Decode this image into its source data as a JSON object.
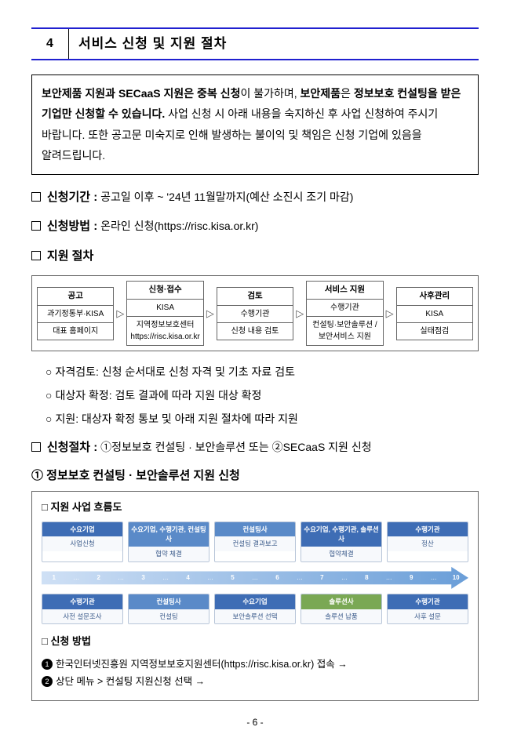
{
  "section": {
    "num": "4",
    "title": "서비스 신청 및 지원 절차"
  },
  "notice": {
    "parts": [
      {
        "t": "보안제품 지원과 SECaaS 지원은 중복 신청",
        "b": true
      },
      {
        "t": "이 불가하며, ",
        "b": false
      },
      {
        "t": "보안제품",
        "b": true
      },
      {
        "t": "은 ",
        "b": false
      },
      {
        "t": "정보보호 컨설팅을 받은 기업만 신청할 수 있습니다.",
        "b": true
      },
      {
        "t": " 사업 신청 시 아래 내용을 숙지하신 후 사업 신청하여 주시기 바랍니다. 또한 공고문 미숙지로 인해 발생하는 불이익 및 책임은 신청 기업에 있음을 알려드립니다.",
        "b": false
      }
    ]
  },
  "period": {
    "label": "신청기간 :",
    "text": "공고일 이후 ~ '24년 11월말까지(예산 소진시 조기 마감)"
  },
  "method": {
    "label": "신청방법 :",
    "text": "온라인 신청(https://risc.kisa.or.kr)"
  },
  "proc_label": "지원 절차",
  "flow": [
    {
      "head": "공고",
      "sub": "과기정통부·KISA",
      "body": "대표 홈페이지"
    },
    {
      "head": "신청·접수",
      "sub": "KISA",
      "body": "지역정보보호센터 https://risc.kisa.or.kr"
    },
    {
      "head": "검토",
      "sub": "수행기관",
      "body": "신청 내용 검토"
    },
    {
      "head": "서비스 지원",
      "sub": "수행기관",
      "body": "컨설팅·보안솔루션 / 보안서비스 지원"
    },
    {
      "head": "사후관리",
      "sub": "KISA",
      "body": "실태점검"
    }
  ],
  "bullets": [
    "자격검토: 신청 순서대로 신청 자격 및 기초 자료 검토",
    "대상자 확정: 검토 결과에 따라 지원 대상 확정",
    "지원: 대상자 확정 통보 및 아래 지원 절차에 따라 지원"
  ],
  "proc2": {
    "label": "신청절차 :",
    "text": "①정보보호 컨설팅 · 보안솔루션 또는 ②SECaaS 지원 신청"
  },
  "sub_num_title": "① 정보보호 컨설팅 · 보안솔루션 지원 신청",
  "diagram": {
    "title": "□ 지원 사업 흐름도",
    "top": [
      {
        "head": "수요기업",
        "body": "사업신청",
        "color": "#3e6db5"
      },
      {
        "head": "수요기업, 수행기관, 컨설팅사",
        "body": "협약 체결",
        "color": "#5a8ac8"
      },
      {
        "head": "컨설팅사",
        "body": "컨설팅 결과보고",
        "color": "#5a8ac8"
      },
      {
        "head": "수요기업, 수행기관, 솔루션사",
        "body": "협약체결",
        "color": "#3e6db5"
      },
      {
        "head": "수행기관",
        "body": "정산",
        "color": "#3e6db5"
      }
    ],
    "bottom": [
      {
        "head": "수행기관",
        "body": "사전 설문조사",
        "color": "#3e6db5"
      },
      {
        "head": "컨설팅사",
        "body": "컨설팅",
        "color": "#5a8ac8"
      },
      {
        "head": "수요기업",
        "body": "보안솔루션 선택",
        "color": "#3e6db5"
      },
      {
        "head": "솔루션사",
        "body": "솔루션 납품",
        "color": "#7aa854"
      },
      {
        "head": "수행기관",
        "body": "사후 설문",
        "color": "#3e6db5"
      }
    ],
    "dots": [
      "1",
      "2",
      "3",
      "4",
      "5",
      "6",
      "7",
      "8",
      "9",
      "10"
    ],
    "method_title": "□ 신청 방법",
    "methods": [
      "한국인터넷진흥원 지역정보보호지원센터(https://risc.kisa.or.kr) 접속 →",
      "상단 메뉴 > 컨설팅 지원신청 선택 →"
    ]
  },
  "page": "- 6 -"
}
